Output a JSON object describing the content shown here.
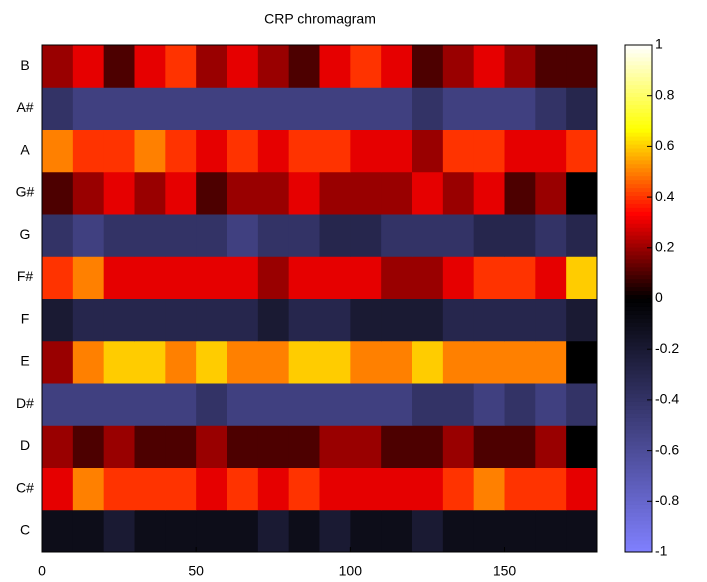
{
  "chart_data": {
    "type": "heatmap",
    "title": "CRP chromagram",
    "xbins": [
      0,
      10,
      20,
      30,
      40,
      50,
      60,
      70,
      80,
      90,
      100,
      110,
      120,
      130,
      140,
      150,
      160,
      170,
      180
    ],
    "xlim": [
      0,
      180
    ],
    "xticks": [
      0,
      50,
      100,
      150
    ],
    "series": [
      {
        "name": "C",
        "values": [
          -0.1,
          -0.1,
          -0.2,
          -0.1,
          -0.1,
          -0.1,
          -0.1,
          -0.2,
          -0.1,
          -0.2,
          -0.1,
          -0.1,
          -0.2,
          -0.1,
          -0.1,
          -0.1,
          -0.1,
          -0.1
        ]
      },
      {
        "name": "C#",
        "values": [
          0.3,
          0.5,
          0.4,
          0.4,
          0.4,
          0.3,
          0.4,
          0.3,
          0.4,
          0.3,
          0.3,
          0.3,
          0.3,
          0.4,
          0.5,
          0.4,
          0.4,
          0.3
        ]
      },
      {
        "name": "D",
        "values": [
          0.2,
          0.1,
          0.2,
          0.1,
          0.1,
          0.2,
          0.1,
          0.1,
          0.1,
          0.2,
          0.2,
          0.1,
          0.1,
          0.2,
          0.1,
          0.1,
          0.2,
          0
        ]
      },
      {
        "name": "D#",
        "values": [
          -0.5,
          -0.5,
          -0.5,
          -0.5,
          -0.5,
          -0.4,
          -0.5,
          -0.5,
          -0.5,
          -0.5,
          -0.5,
          -0.5,
          -0.4,
          -0.4,
          -0.5,
          -0.4,
          -0.5,
          -0.4
        ]
      },
      {
        "name": "E",
        "values": [
          0.2,
          0.5,
          0.6,
          0.6,
          0.5,
          0.6,
          0.5,
          0.5,
          0.6,
          0.6,
          0.5,
          0.5,
          0.6,
          0.5,
          0.5,
          0.5,
          0.5,
          0
        ]
      },
      {
        "name": "F",
        "values": [
          -0.2,
          -0.3,
          -0.3,
          -0.3,
          -0.3,
          -0.3,
          -0.3,
          -0.2,
          -0.3,
          -0.3,
          -0.2,
          -0.2,
          -0.2,
          -0.3,
          -0.3,
          -0.3,
          -0.3,
          -0.2
        ]
      },
      {
        "name": "F#",
        "values": [
          0.4,
          0.5,
          0.3,
          0.3,
          0.3,
          0.3,
          0.3,
          0.2,
          0.3,
          0.3,
          0.3,
          0.2,
          0.2,
          0.3,
          0.4,
          0.4,
          0.3,
          0.6
        ]
      },
      {
        "name": "G",
        "values": [
          -0.4,
          -0.5,
          -0.4,
          -0.4,
          -0.4,
          -0.4,
          -0.5,
          -0.4,
          -0.4,
          -0.3,
          -0.3,
          -0.4,
          -0.4,
          -0.4,
          -0.3,
          -0.3,
          -0.4,
          -0.3
        ]
      },
      {
        "name": "G#",
        "values": [
          0.1,
          0.2,
          0.3,
          0.2,
          0.3,
          0.1,
          0.2,
          0.2,
          0.3,
          0.2,
          0.2,
          0.2,
          0.3,
          0.2,
          0.3,
          0.1,
          0.2,
          0
        ]
      },
      {
        "name": "A",
        "values": [
          0.5,
          0.4,
          0.4,
          0.5,
          0.4,
          0.3,
          0.4,
          0.3,
          0.4,
          0.4,
          0.3,
          0.3,
          0.2,
          0.4,
          0.4,
          0.3,
          0.3,
          0.4
        ]
      },
      {
        "name": "A#",
        "values": [
          -0.4,
          -0.5,
          -0.5,
          -0.5,
          -0.5,
          -0.5,
          -0.5,
          -0.5,
          -0.5,
          -0.5,
          -0.5,
          -0.5,
          -0.4,
          -0.5,
          -0.5,
          -0.5,
          -0.4,
          -0.3
        ]
      },
      {
        "name": "B",
        "values": [
          0.2,
          0.3,
          0.1,
          0.3,
          0.4,
          0.2,
          0.3,
          0.2,
          0.1,
          0.3,
          0.4,
          0.3,
          0.1,
          0.2,
          0.3,
          0.2,
          0.1,
          0.1
        ]
      }
    ],
    "clim": [
      -1,
      1
    ],
    "cticks": [
      -1,
      -0.8,
      -0.6,
      -0.4,
      -0.2,
      0,
      0.2,
      0.4,
      0.6,
      0.8,
      1
    ]
  }
}
